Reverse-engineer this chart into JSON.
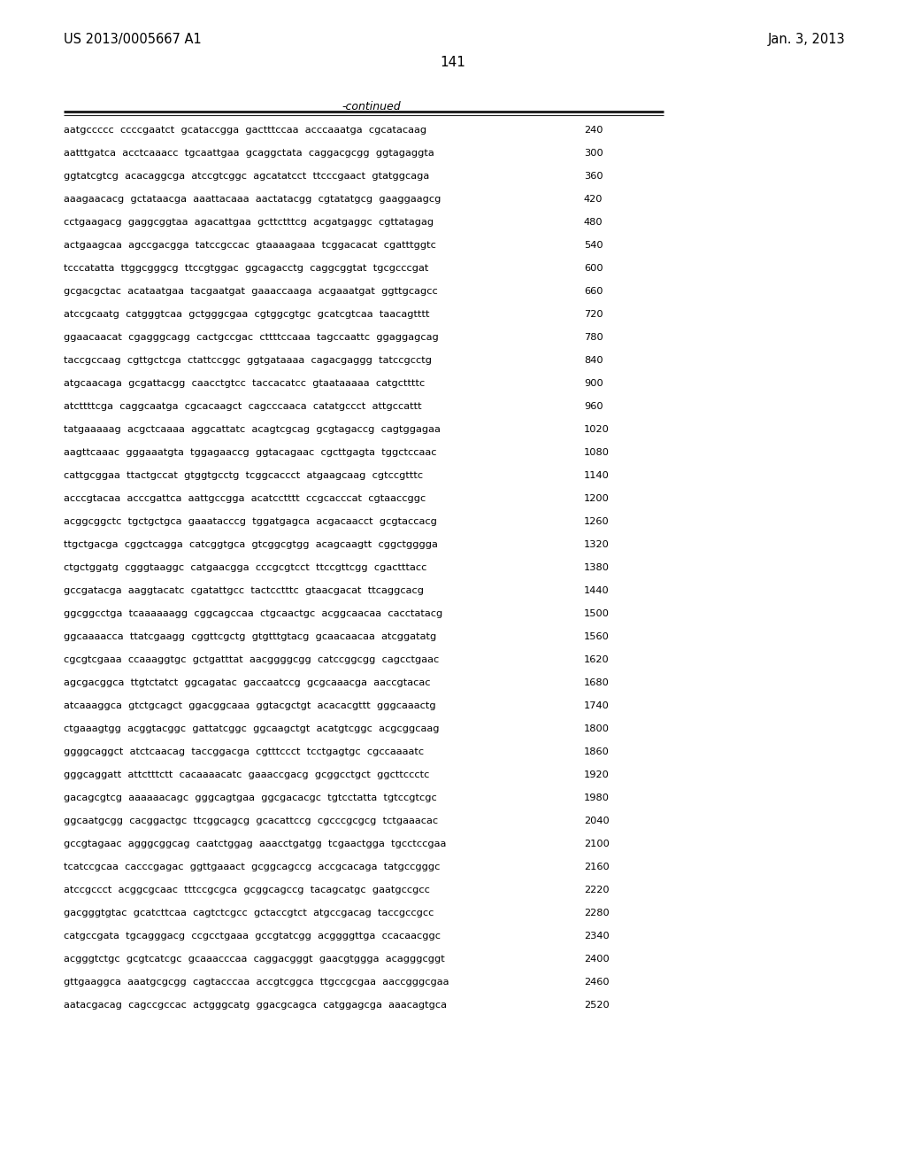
{
  "header_left": "US 2013/0005667 A1",
  "header_right": "Jan. 3, 2013",
  "page_number": "141",
  "continued_label": "-continued",
  "background_color": "#ffffff",
  "text_color": "#000000",
  "sequence_lines": [
    [
      "aatgccccc  ccccgaatct  gcataccgga  gactttccaa  acccaaatga  cgcatacaag",
      "240"
    ],
    [
      "aatttgatca  acctcaaacc  tgcaattgaa  gcaggctata  caggacgcgg  ggtagaggta",
      "300"
    ],
    [
      "ggtatcgtcg  acacaggcga  atccgtcggc  agcatatcct  ttcccgaact  gtatggcaga",
      "360"
    ],
    [
      "aaagaacacg  gctataacga  aaattacaaa  aactatacgg  cgtatatgcg  gaaggaagcg",
      "420"
    ],
    [
      "cctgaagacg  gaggcggtaa  agacattgaa  gcttctttcg  acgatgaggc  cgttatagag",
      "480"
    ],
    [
      "actgaagcaa  agccgacgga  tatccgccac  gtaaaagaaa  tcggacacat  cgatttggtc",
      "540"
    ],
    [
      "tcccatatta  ttggcgggcg  ttccgtggac  ggcagacctg  caggcggtat  tgcgcccgat",
      "600"
    ],
    [
      "gcgacgctac  acataatgaa  tacgaatgat  gaaaccaaga  acgaaatgat  ggttgcagcc",
      "660"
    ],
    [
      "atccgcaatg  catgggtcaa  gctgggcgaa  cgtggcgtgc  gcatcgtcaa  taacagtttt",
      "720"
    ],
    [
      "ggaacaacat  cgagggcagg  cactgccgac  cttttccaaa  tagccaattc  ggaggagcag",
      "780"
    ],
    [
      "taccgccaag  cgttgctcga  ctattccggc  ggtgataaaa  cagacgaggg  tatccgcctg",
      "840"
    ],
    [
      "atgcaacaga  gcgattacgg  caacctgtcc  taccacatcc  gtaataaaaa  catgcttttc",
      "900"
    ],
    [
      "atcttttcga  caggcaatga  cgcacaagct  cagcccaaca  catatgccct  attgccattt",
      "960"
    ],
    [
      "tatgaaaaag  acgctcaaaa  aggcattatc  acagtcgcag  gcgtagaccg  cagtggagaa",
      "1020"
    ],
    [
      "aagttcaaac  gggaaatgta  tggagaaccg  ggtacagaac  cgcttgagta  tggctccaac",
      "1080"
    ],
    [
      "cattgcggaa  ttactgccat  gtggtgcctg  tcggcaccct  atgaagcaag  cgtccgtttc",
      "1140"
    ],
    [
      "acccgtacaa  acccgattca  aattgccgga  acatcctttt  ccgcacccat  cgtaaccggc",
      "1200"
    ],
    [
      "acggcggctc  tgctgctgca  gaaatacccg  tggatgagca  acgacaacct  gcgtaccacg",
      "1260"
    ],
    [
      "ttgctgacga  cggctcagga  catcggtgca  gtcggcgtgg  acagcaagtt  cggctgggga",
      "1320"
    ],
    [
      "ctgctggatg  cgggtaaggc  catgaacgga  cccgcgtcct  ttccgttcgg  cgactttacc",
      "1380"
    ],
    [
      "gccgatacga  aaggtacatc  cgatattgcc  tactcctttc  gtaacgacat  ttcaggcacg",
      "1440"
    ],
    [
      "ggcggcctga  tcaaaaaagg  cggcagccaa  ctgcaactgc  acggcaacaa  cacctatacg",
      "1500"
    ],
    [
      "ggcaaaacca  ttatcgaagg  cggttcgctg  gtgtttgtacg  gcaacaacaa  atcggatatg",
      "1560"
    ],
    [
      "cgcgtcgaaa  ccaaaggtgc  gctgatttat  aacggggcgg  catccggcgg  cagcctgaac",
      "1620"
    ],
    [
      "agcgacggca  ttgtctatct  ggcagatac  gaccaatccg  gcgcaaacga  aaccgtacac",
      "1680"
    ],
    [
      "atcaaaggca  gtctgcagct  ggacggcaaa  ggtacgctgt  acacacgttt  gggcaaactg",
      "1740"
    ],
    [
      "ctgaaagtgg  acggtacggc  gattatcggc  ggcaagctgt  acatgtcggc  acgcggcaag",
      "1800"
    ],
    [
      "ggggcaggct  atctcaacag  taccggacga  cgtttccct  tcctgagtgc  cgccaaaatc",
      "1860"
    ],
    [
      "gggcaggatt  attctttctt  cacaaaacatc  gaaaccgacg  gcggcctgct  ggcttccctc",
      "1920"
    ],
    [
      "gacagcgtcg  aaaaaacagc  gggcagtgaa  ggcgacacgc  tgtcctatta  tgtccgtcgc",
      "1980"
    ],
    [
      "ggcaatgcgg  cacggactgc  ttcggcagcg  gcacattccg  cgcccgcgcg  tctgaaacac",
      "2040"
    ],
    [
      "gccgtagaac  agggcggcag  caatctggag  aaacctgatgg  tcgaactgga  tgcctccgaa",
      "2100"
    ],
    [
      "tcatccgcaa  cacccgagac  ggttgaaact  gcggcagccg  accgcacaga  tatgccgggc",
      "2160"
    ],
    [
      "atccgccct  acggcgcaac  tttccgcgca  gcggcagccg  tacagcatgc  gaatgccgcc",
      "2220"
    ],
    [
      "gacgggtgtac  gcatcttcaa  cagtctcgcc  gctaccgtct  atgccgacag  taccgccgcc",
      "2280"
    ],
    [
      "catgccgata  tgcagggacg  ccgcctgaaa  gccgtatcgg  acggggttga  ccacaacggc",
      "2340"
    ],
    [
      "acgggtctgc  gcgtcatcgc  gcaaacccaa  caggacgggt  gaacgtggga  acagggcggt",
      "2400"
    ],
    [
      "gttgaaggca  aaatgcgcgg  cagtacccaa  accgtcggca  ttgccgcgaa  aaccgggcgaa",
      "2460"
    ],
    [
      "aatacgacag  cagccgccac  actgggcatg  ggacgcagca  catggagcga  aaacagtgca",
      "2520"
    ]
  ]
}
